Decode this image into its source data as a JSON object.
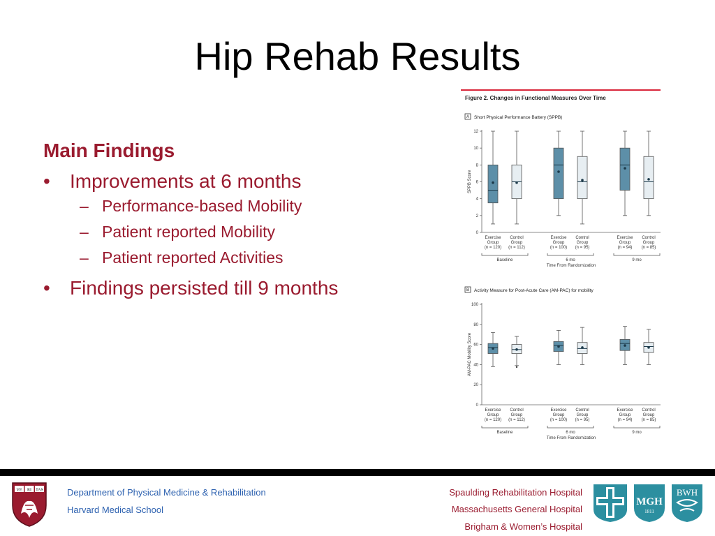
{
  "slide": {
    "title": "Hip Rehab Results",
    "main_findings_heading": "Main Findings",
    "bullets": [
      {
        "text": "Improvements at 6 months",
        "sub": [
          "Performance-based Mobility",
          "Patient reported Mobility",
          "Patient reported Activities"
        ]
      },
      {
        "text": "Findings persisted till 9 months",
        "sub": []
      }
    ]
  },
  "figure": {
    "title": "Figure 2. Changes in Functional Measures Over Time",
    "time_axis_label": "Time From Randomization",
    "time_groups": [
      "Baseline",
      "6 mo",
      "9 mo"
    ],
    "group_labels": [
      [
        "Exercise",
        "Group",
        "(n = 120)"
      ],
      [
        "Control",
        "Group",
        "(n = 112)"
      ],
      [
        "Exercise",
        "Group",
        "(n = 100)"
      ],
      [
        "Control",
        "Group",
        "(n = 95)"
      ],
      [
        "Exercise",
        "Group",
        "(n = 94)"
      ],
      [
        "Control",
        "Group",
        "(n = 85)"
      ]
    ]
  },
  "chart_data": [
    {
      "type": "box",
      "panel_letter": "A",
      "title": "Short Physical Performance Battery (SPPB)",
      "ylabel": "SPPB Score",
      "ylim": [
        0,
        12
      ],
      "yticks": [
        0,
        2,
        4,
        6,
        8,
        10,
        12
      ],
      "boxes": [
        {
          "group": "Exercise",
          "time": "Baseline",
          "min": 1,
          "q1": 3.5,
          "median": 5,
          "q3": 8,
          "max": 12,
          "mean": 5.9
        },
        {
          "group": "Control",
          "time": "Baseline",
          "min": 1,
          "q1": 4,
          "median": 6,
          "q3": 8,
          "max": 12,
          "mean": 5.9
        },
        {
          "group": "Exercise",
          "time": "6 mo",
          "min": 2,
          "q1": 4,
          "median": 8,
          "q3": 10,
          "max": 12,
          "mean": 7.2
        },
        {
          "group": "Control",
          "time": "6 mo",
          "min": 1,
          "q1": 4,
          "median": 6,
          "q3": 9,
          "max": 12,
          "mean": 6.2
        },
        {
          "group": "Exercise",
          "time": "9 mo",
          "min": 2,
          "q1": 5,
          "median": 8,
          "q3": 10,
          "max": 12,
          "mean": 7.6
        },
        {
          "group": "Control",
          "time": "9 mo",
          "min": 2,
          "q1": 4,
          "median": 6,
          "q3": 9,
          "max": 12,
          "mean": 6.3
        }
      ]
    },
    {
      "type": "box",
      "panel_letter": "B",
      "title": "Activity Measure for Post-Acute Care (AM-PAC) for mobility",
      "ylabel": "AM-PAC Mobility Score",
      "ylim": [
        0,
        100
      ],
      "yticks": [
        0,
        20,
        40,
        60,
        80,
        100
      ],
      "boxes": [
        {
          "group": "Exercise",
          "time": "Baseline",
          "min": 38,
          "q1": 51,
          "median": 57,
          "q3": 61,
          "max": 72,
          "mean": 56
        },
        {
          "group": "Control",
          "time": "Baseline",
          "min": 39,
          "q1": 51,
          "median": 55,
          "q3": 60,
          "max": 68,
          "mean": 55
        },
        {
          "group": "Exercise",
          "time": "6 mo",
          "min": 40,
          "q1": 53,
          "median": 59,
          "q3": 63,
          "max": 74,
          "mean": 58
        },
        {
          "group": "Control",
          "time": "6 mo",
          "min": 40,
          "q1": 51,
          "median": 56,
          "q3": 62,
          "max": 77,
          "mean": 57
        },
        {
          "group": "Exercise",
          "time": "9 mo",
          "min": 40,
          "q1": 54,
          "median": 61,
          "q3": 65,
          "max": 78,
          "mean": 59
        },
        {
          "group": "Control",
          "time": "9 mo",
          "min": 40,
          "q1": 52,
          "median": 58,
          "q3": 62,
          "max": 75,
          "mean": 57
        }
      ],
      "outliers": [
        {
          "group": "Control",
          "time": "Baseline",
          "value": 39
        }
      ]
    }
  ],
  "footer": {
    "dept": "Department of Physical Medicine & Rehabilitation",
    "school": "Harvard Medical School",
    "hospitals": [
      "Spaulding Rehabilitation Hospital",
      "Massachusetts General Hospital",
      "Brigham & Women’s Hospital"
    ],
    "harvard_shield_text": [
      "VE",
      "RI",
      "TAS"
    ],
    "mgh_logo_text": [
      "MGH",
      "1811"
    ],
    "bwh_logo_text": "BWH",
    "colors": {
      "crimson": "#9a1b2f",
      "blue": "#2e62b0",
      "teal": "#2c8fa0",
      "exercise_fill": "#5d8fa8",
      "control_fill": "#e7eef2"
    }
  }
}
